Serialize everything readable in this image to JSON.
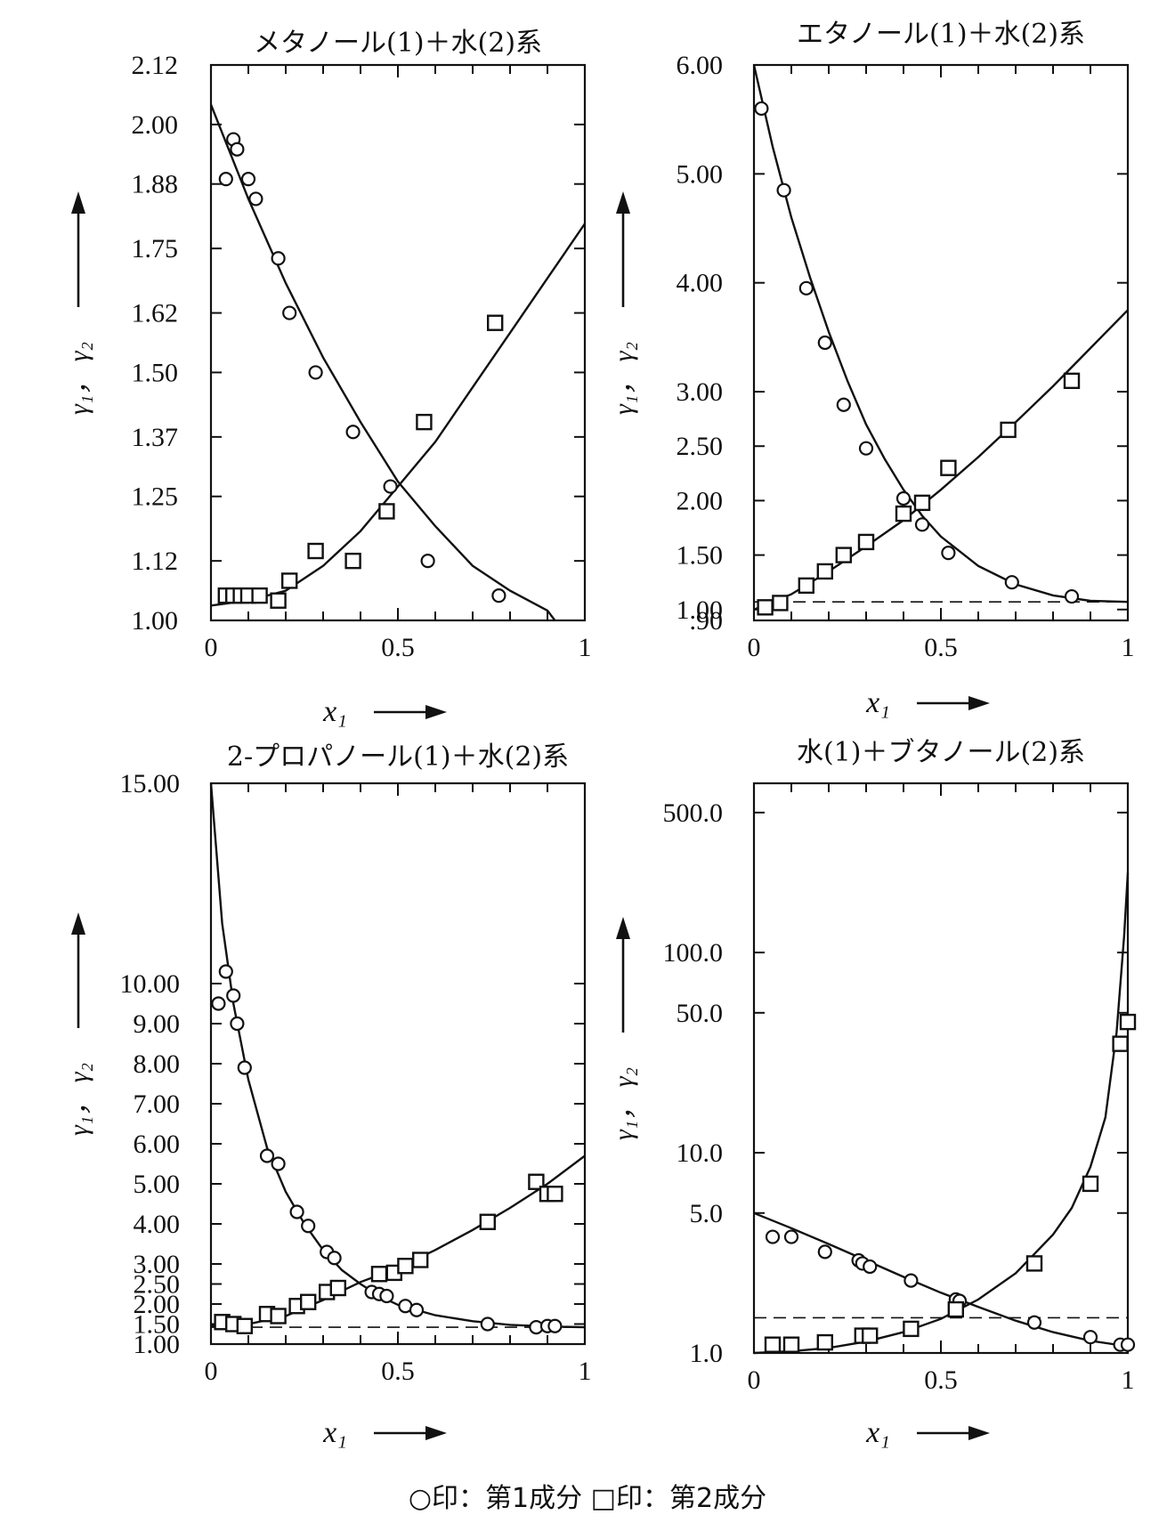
{
  "legend": "○印：第1成分 □印：第2成分",
  "chart_data": [
    {
      "type": "scatter",
      "title": "メタノール(1)＋水(2)系",
      "xlabel": "x₁",
      "ylabel": "γ₁， γ₂",
      "xlim": [
        0,
        1
      ],
      "ylim": [
        1.0,
        2.12
      ],
      "yticks": [
        1.0,
        1.12,
        1.25,
        1.37,
        1.5,
        1.62,
        1.75,
        1.88,
        2.0,
        2.12
      ],
      "ytick_labels": [
        "1.00",
        "1.12",
        "1.25",
        "1.37",
        "1.50",
        "1.62",
        "1.75",
        "1.88",
        "2.00",
        "2.12"
      ],
      "xticks": [
        0,
        0.5,
        1
      ],
      "xtick_labels": [
        "0",
        "0.5",
        "1"
      ],
      "series": [
        {
          "name": "第1成分",
          "marker": "circle",
          "x": [
            0.04,
            0.06,
            0.07,
            0.1,
            0.12,
            0.18,
            0.21,
            0.28,
            0.38,
            0.48,
            0.58,
            0.77
          ],
          "y": [
            1.89,
            1.97,
            1.95,
            1.89,
            1.85,
            1.73,
            1.62,
            1.5,
            1.38,
            1.27,
            1.12,
            1.05
          ]
        },
        {
          "name": "第2成分",
          "marker": "square",
          "x": [
            0.04,
            0.06,
            0.08,
            0.1,
            0.13,
            0.18,
            0.21,
            0.28,
            0.38,
            0.47,
            0.57,
            0.76
          ],
          "y": [
            1.05,
            1.05,
            1.05,
            1.05,
            1.05,
            1.04,
            1.08,
            1.14,
            1.12,
            1.22,
            1.4,
            1.6
          ]
        }
      ],
      "curves": [
        {
          "name": "γ1",
          "x": [
            0,
            0.1,
            0.2,
            0.3,
            0.4,
            0.5,
            0.6,
            0.7,
            0.8,
            0.9,
            0.92
          ],
          "y": [
            2.04,
            1.85,
            1.68,
            1.53,
            1.4,
            1.28,
            1.19,
            1.11,
            1.06,
            1.02,
            1.0
          ]
        },
        {
          "name": "γ2",
          "x": [
            0,
            0.1,
            0.2,
            0.3,
            0.4,
            0.5,
            0.6,
            0.7,
            0.8,
            0.9,
            1.0
          ],
          "y": [
            1.03,
            1.04,
            1.06,
            1.11,
            1.18,
            1.27,
            1.36,
            1.47,
            1.58,
            1.69,
            1.8
          ]
        }
      ]
    },
    {
      "type": "scatter",
      "title": "エタノール(1)＋水(2)系",
      "xlabel": "x₁",
      "ylabel": "γ₁， γ₂",
      "xlim": [
        0,
        1
      ],
      "ylim": [
        0.9,
        6.0
      ],
      "yticks": [
        0.9,
        1.0,
        1.5,
        2.0,
        2.5,
        3.0,
        4.0,
        5.0,
        6.0
      ],
      "ytick_labels": [
        ".90",
        "1.00",
        "1.50",
        "2.00",
        "2.50",
        "3.00",
        "4.00",
        "5.00",
        "6.00"
      ],
      "xticks": [
        0,
        0.5,
        1
      ],
      "xtick_labels": [
        "0",
        "0.5",
        "1"
      ],
      "series": [
        {
          "name": "第1成分",
          "marker": "circle",
          "x": [
            0.02,
            0.08,
            0.14,
            0.19,
            0.24,
            0.3,
            0.4,
            0.45,
            0.52,
            0.69,
            0.85
          ],
          "y": [
            5.6,
            4.85,
            3.95,
            3.45,
            2.88,
            2.48,
            2.02,
            1.78,
            1.52,
            1.25,
            1.12
          ]
        },
        {
          "name": "第2成分",
          "marker": "square",
          "x": [
            0.03,
            0.07,
            0.14,
            0.19,
            0.24,
            0.3,
            0.4,
            0.45,
            0.52,
            0.68,
            0.85
          ],
          "y": [
            1.02,
            1.06,
            1.22,
            1.35,
            1.5,
            1.62,
            1.88,
            1.98,
            2.3,
            2.65,
            3.1
          ]
        }
      ],
      "curves": [
        {
          "name": "γ1",
          "x": [
            0,
            0.05,
            0.1,
            0.15,
            0.2,
            0.25,
            0.3,
            0.35,
            0.4,
            0.45,
            0.5,
            0.6,
            0.7,
            0.8,
            0.9,
            1.0
          ],
          "y": [
            6.0,
            5.25,
            4.6,
            4.05,
            3.55,
            3.1,
            2.7,
            2.38,
            2.1,
            1.86,
            1.67,
            1.4,
            1.23,
            1.13,
            1.08,
            1.07
          ]
        },
        {
          "name": "γ2",
          "x": [
            0,
            0.1,
            0.2,
            0.3,
            0.4,
            0.5,
            0.6,
            0.7,
            0.8,
            0.9,
            1.0
          ],
          "y": [
            1.0,
            1.14,
            1.35,
            1.58,
            1.82,
            2.1,
            2.4,
            2.72,
            3.05,
            3.4,
            3.75
          ]
        }
      ],
      "dashed_y": 1.07
    },
    {
      "type": "scatter",
      "title": "2-プロパノール(1)＋水(2)系",
      "xlabel": "x₁",
      "ylabel": "γ₁， γ₂",
      "xlim": [
        0,
        1
      ],
      "ylim": [
        1.0,
        15.0
      ],
      "yticks": [
        1.0,
        1.5,
        2.0,
        2.5,
        3.0,
        4.0,
        5.0,
        6.0,
        7.0,
        8.0,
        9.0,
        10.0,
        15.0
      ],
      "ytick_labels": [
        "1.00",
        "1.50",
        "2.00",
        "2.50",
        "3.00",
        "4.00",
        "5.00",
        "6.00",
        "7.00",
        "8.00",
        "9.00",
        "10.00",
        "15.00"
      ],
      "xticks": [
        0,
        0.5,
        1
      ],
      "xtick_labels": [
        "0",
        "0.5",
        "1"
      ],
      "series": [
        {
          "name": "第1成分",
          "marker": "circle",
          "x": [
            0.02,
            0.04,
            0.06,
            0.07,
            0.09,
            0.15,
            0.18,
            0.23,
            0.26,
            0.31,
            0.33,
            0.43,
            0.45,
            0.47,
            0.52,
            0.55,
            0.74,
            0.87,
            0.9,
            0.92
          ],
          "y": [
            9.5,
            10.3,
            9.7,
            9.0,
            7.9,
            5.7,
            5.5,
            4.3,
            3.95,
            3.3,
            3.15,
            2.3,
            2.25,
            2.2,
            1.95,
            1.85,
            1.5,
            1.42,
            1.45,
            1.45
          ]
        },
        {
          "name": "第2成分",
          "marker": "square",
          "x": [
            0.03,
            0.06,
            0.09,
            0.15,
            0.18,
            0.23,
            0.26,
            0.31,
            0.34,
            0.45,
            0.49,
            0.52,
            0.56,
            0.74,
            0.87,
            0.9,
            0.92
          ],
          "y": [
            1.55,
            1.5,
            1.45,
            1.75,
            1.7,
            1.95,
            2.05,
            2.3,
            2.4,
            2.75,
            2.78,
            2.95,
            3.1,
            4.05,
            5.05,
            4.75,
            4.75
          ]
        }
      ],
      "curves": [
        {
          "name": "γ1",
          "x": [
            0,
            0.03,
            0.06,
            0.1,
            0.15,
            0.2,
            0.25,
            0.3,
            0.35,
            0.4,
            0.45,
            0.5,
            0.6,
            0.7,
            0.8,
            0.9,
            1.0
          ],
          "y": [
            15.0,
            11.5,
            9.5,
            7.6,
            5.9,
            4.8,
            4.0,
            3.35,
            2.85,
            2.5,
            2.2,
            1.98,
            1.72,
            1.57,
            1.48,
            1.44,
            1.42
          ]
        },
        {
          "name": "γ2",
          "x": [
            0,
            0.1,
            0.2,
            0.3,
            0.4,
            0.5,
            0.6,
            0.7,
            0.8,
            0.9,
            1.0
          ],
          "y": [
            1.45,
            1.5,
            1.7,
            2.1,
            2.55,
            2.9,
            3.35,
            3.85,
            4.4,
            5.0,
            5.7
          ]
        }
      ],
      "dashed_y": 1.42
    },
    {
      "type": "scatter",
      "title": "水(1)＋ブタノール(2)系",
      "xlabel": "x₁",
      "ylabel": "γ₁， γ₂",
      "xlim": [
        0,
        1
      ],
      "ylim": [
        1.0,
        700.0
      ],
      "yscale": "log",
      "yticks": [
        1.0,
        5.0,
        10.0,
        50.0,
        100.0,
        500.0
      ],
      "ytick_labels": [
        "1.0",
        "5.0",
        "10.0",
        "50.0",
        "100.0",
        "500.0"
      ],
      "xticks": [
        0,
        0.5,
        1
      ],
      "xtick_labels": [
        "0",
        "0.5",
        "1"
      ],
      "series": [
        {
          "name": "第1成分",
          "marker": "circle",
          "x": [
            0.05,
            0.1,
            0.19,
            0.28,
            0.29,
            0.31,
            0.42,
            0.54,
            0.55,
            0.75,
            0.9,
            0.98,
            1.0
          ],
          "y": [
            3.8,
            3.8,
            3.2,
            2.9,
            2.8,
            2.7,
            2.3,
            1.85,
            1.82,
            1.42,
            1.2,
            1.1,
            1.1
          ]
        },
        {
          "name": "第2成分",
          "marker": "square",
          "x": [
            0.05,
            0.1,
            0.19,
            0.29,
            0.31,
            0.42,
            0.54,
            0.75,
            0.9,
            0.98,
            1.0
          ],
          "y": [
            1.1,
            1.1,
            1.13,
            1.22,
            1.22,
            1.32,
            1.65,
            2.8,
            7.0,
            35.0,
            45.0
          ]
        }
      ],
      "curves": [
        {
          "name": "γ1",
          "x": [
            0,
            0.1,
            0.2,
            0.3,
            0.4,
            0.5,
            0.6,
            0.7,
            0.8,
            0.9,
            1.0
          ],
          "y": [
            5.0,
            4.2,
            3.5,
            2.9,
            2.4,
            2.0,
            1.7,
            1.45,
            1.27,
            1.15,
            1.08
          ]
        },
        {
          "name": "γ2",
          "x": [
            0,
            0.1,
            0.2,
            0.3,
            0.4,
            0.5,
            0.6,
            0.7,
            0.8,
            0.85,
            0.9,
            0.94,
            0.97,
            0.99,
            1.0
          ],
          "y": [
            1.0,
            1.02,
            1.06,
            1.14,
            1.27,
            1.48,
            1.85,
            2.5,
            3.9,
            5.3,
            8.5,
            15,
            40,
            120,
            250
          ]
        }
      ],
      "dashed_y": 1.5
    }
  ]
}
